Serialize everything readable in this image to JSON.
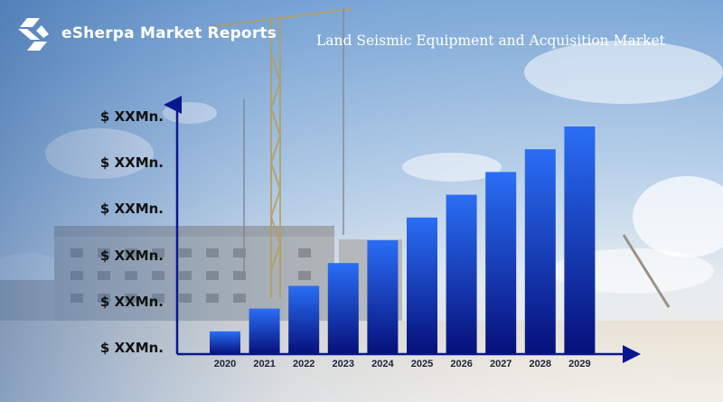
{
  "brand": {
    "name": "eSherpa Market Reports",
    "logo_icon": "esherpa-logo-icon"
  },
  "chart_data": {
    "type": "bar",
    "title": "Land Seismic Equipment and Acquisition Market",
    "categories": [
      "2020",
      "2021",
      "2022",
      "2023",
      "2024",
      "2025",
      "2026",
      "2027",
      "2028",
      "2029"
    ],
    "values": [
      1,
      2,
      3,
      4,
      5,
      6,
      7,
      8,
      9,
      10
    ],
    "y_tick_labels": [
      "$ XXMn.",
      "$ XXMn.",
      "$ XXMn.",
      "$ XXMn.",
      "$ XXMn.",
      "$ XXMn."
    ],
    "ylim": [
      0,
      10
    ],
    "xlabel": "",
    "ylabel": "",
    "grid": false,
    "colors": {
      "bar_top": "#2a6ef5",
      "bar_bottom": "#06107a",
      "axis": "#0a1690"
    }
  }
}
